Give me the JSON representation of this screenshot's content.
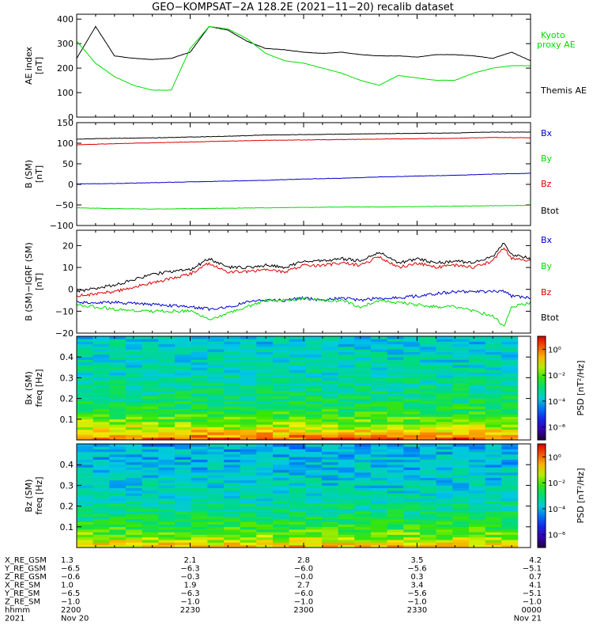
{
  "title": "GEO−KOMPSAT−2A 128.2E (2021−11−20) recalib dataset",
  "chart_data": [
    {
      "type": "line",
      "panel": "ae-index",
      "ylabel": "AE index",
      "yunit": "[nT]",
      "ylim": [
        0,
        420
      ],
      "yticks": [
        "0",
        "100",
        "200",
        "300",
        "400"
      ],
      "x": [
        0,
        5,
        10,
        15,
        20,
        25,
        30,
        35,
        40,
        45,
        50,
        55,
        60,
        65,
        70,
        75,
        80,
        85,
        90,
        95,
        100,
        105,
        110,
        115,
        120
      ],
      "series": [
        {
          "name": "Themis AE",
          "color": "#000000",
          "values": [
            240,
            370,
            250,
            240,
            235,
            240,
            265,
            370,
            355,
            310,
            280,
            275,
            265,
            260,
            265,
            255,
            250,
            250,
            245,
            255,
            255,
            250,
            240,
            265,
            230
          ]
        },
        {
          "name": "Kyoto proxy AE",
          "color": "#00dd00",
          "values": [
            310,
            220,
            165,
            130,
            110,
            110,
            280,
            370,
            360,
            320,
            260,
            230,
            220,
            200,
            180,
            150,
            130,
            170,
            160,
            150,
            150,
            180,
            200,
            210,
            210
          ]
        }
      ]
    },
    {
      "type": "line",
      "panel": "b-sm",
      "ylabel": "B (SM)",
      "yunit": "[nT]",
      "ylim": [
        -100,
        150
      ],
      "yticks": [
        "−100",
        "−50",
        "0",
        "50",
        "100",
        "150"
      ],
      "x": [
        0,
        10,
        20,
        30,
        40,
        50,
        60,
        70,
        80,
        90,
        100,
        110,
        120
      ],
      "series": [
        {
          "name": "Btot",
          "color": "#000000",
          "values": [
            110,
            112,
            113,
            115,
            117,
            120,
            121,
            122,
            123,
            124,
            125,
            127,
            127
          ]
        },
        {
          "name": "Bx",
          "color": "#0000cc",
          "values": [
            1,
            2,
            4,
            6,
            8,
            10,
            13,
            15,
            18,
            20,
            22,
            25,
            27
          ]
        },
        {
          "name": "By",
          "color": "#00dd00",
          "values": [
            -57,
            -59,
            -60,
            -59,
            -58,
            -57,
            -56,
            -55,
            -55,
            -54,
            -53,
            -52,
            -51
          ]
        },
        {
          "name": "Bz",
          "color": "#dd0000",
          "values": [
            96,
            99,
            101,
            103,
            105,
            107,
            108,
            109,
            110,
            111,
            112,
            114,
            113
          ]
        }
      ]
    },
    {
      "type": "line",
      "panel": "b-minus-igrf",
      "ylabel": "B (SM)−IGRF (SM)",
      "yunit": "[nT]",
      "ylim": [
        -20,
        27
      ],
      "yticks": [
        "−20",
        "−10",
        "0",
        "10",
        "20"
      ],
      "x": [
        0,
        10,
        20,
        30,
        35,
        40,
        45,
        50,
        55,
        60,
        65,
        70,
        75,
        80,
        85,
        90,
        95,
        100,
        105,
        110,
        113,
        115,
        120
      ],
      "series": [
        {
          "name": "Btot",
          "color": "#000000",
          "values": [
            -1,
            2,
            7,
            9,
            14,
            10,
            10,
            11,
            10,
            13,
            13,
            14,
            13,
            17,
            12,
            14,
            12,
            13,
            12,
            15,
            21,
            16,
            14
          ]
        },
        {
          "name": "Bz",
          "color": "#dd0000",
          "values": [
            -3,
            -1,
            3,
            7,
            12,
            8,
            8,
            9,
            8,
            11,
            11,
            12,
            11,
            15,
            10,
            12,
            10,
            11,
            10,
            13,
            19,
            14,
            13
          ]
        },
        {
          "name": "Bx",
          "color": "#0000cc",
          "values": [
            -6,
            -6,
            -7,
            -8,
            -9,
            -8,
            -6,
            -5,
            -5,
            -4,
            -5,
            -4,
            -5,
            -4,
            -4,
            -3,
            -2,
            -1,
            -1,
            -1,
            -1,
            -3,
            -4
          ]
        },
        {
          "name": "By",
          "color": "#00dd00",
          "values": [
            -7,
            -9,
            -10,
            -10,
            -14,
            -11,
            -8,
            -5,
            -5,
            -4,
            -5,
            -5,
            -8,
            -5,
            -6,
            -7,
            -8,
            -8,
            -10,
            -12,
            -17,
            -8,
            -6
          ]
        }
      ]
    },
    {
      "type": "heatmap",
      "panel": "bx-spectrogram",
      "ylabel": "Bx (SM)",
      "yunit": "freq [Hz]",
      "ylim": [
        0,
        0.5
      ],
      "yticks": [
        "0.1",
        "0.2",
        "0.3",
        "0.4"
      ],
      "colorbar": {
        "label": "PSD [nT²/Hz]",
        "ticks": [
          "10⁰",
          "10⁻²",
          "10⁻⁴",
          "10⁻⁶"
        ],
        "range_log10": [
          -7,
          1
        ]
      },
      "bins_time": 27,
      "bins_freq": 40,
      "log10_psd_at_freq": {
        "freq": [
          0.0,
          0.02,
          0.05,
          0.1,
          0.15,
          0.2,
          0.3,
          0.4,
          0.5
        ],
        "value": [
          0.3,
          -0.3,
          -1.2,
          -2.0,
          -2.6,
          -3.0,
          -3.4,
          -3.6,
          -3.8
        ]
      }
    },
    {
      "type": "heatmap",
      "panel": "bz-spectrogram",
      "ylabel": "Bz (SM)",
      "yunit": "freq [Hz]",
      "ylim": [
        0,
        0.5
      ],
      "yticks": [
        "0.1",
        "0.2",
        "0.3",
        "0.4"
      ],
      "colorbar": {
        "label": "PSD [nT²/Hz]",
        "ticks": [
          "10⁰",
          "10⁻²",
          "10⁻⁴",
          "10⁻⁶"
        ],
        "range_log10": [
          -7,
          1
        ]
      },
      "bins_time": 27,
      "bins_freq": 40,
      "log10_psd_at_freq": {
        "freq": [
          0.0,
          0.02,
          0.05,
          0.1,
          0.15,
          0.2,
          0.3,
          0.4,
          0.5
        ],
        "value": [
          -0.5,
          -1.0,
          -1.7,
          -2.4,
          -2.9,
          -3.3,
          -3.7,
          -3.9,
          -4.1
        ]
      }
    }
  ],
  "ephemeris": {
    "rows": [
      {
        "label": "X_RE_GSM",
        "values": [
          "1.3",
          "2.1",
          "2.8",
          "3.5",
          "4.2"
        ]
      },
      {
        "label": "Y_RE_GSM",
        "values": [
          "−6.5",
          "−6.3",
          "−6.0",
          "−5.6",
          "−5.1"
        ]
      },
      {
        "label": "Z_RE_GSM",
        "values": [
          "−0.6",
          "−0.3",
          "−0.0",
          "0.3",
          "0.7"
        ]
      },
      {
        "label": "X_RE_SM",
        "values": [
          "1.0",
          "1.9",
          "2.7",
          "3.4",
          "4.1"
        ]
      },
      {
        "label": "Y_RE_SM",
        "values": [
          "−6.5",
          "−6.3",
          "−6.0",
          "−5.6",
          "−5.1"
        ]
      },
      {
        "label": "Z_RE_SM",
        "values": [
          "−1.0",
          "−1.0",
          "−1.0",
          "−1.0",
          "−1.0"
        ]
      },
      {
        "label": "hhmm",
        "values": [
          "2200",
          "2230",
          "2300",
          "2330",
          "0000"
        ]
      },
      {
        "label": "2021",
        "values": [
          "Nov 20",
          "",
          "",
          "",
          "Nov 21"
        ]
      }
    ]
  }
}
